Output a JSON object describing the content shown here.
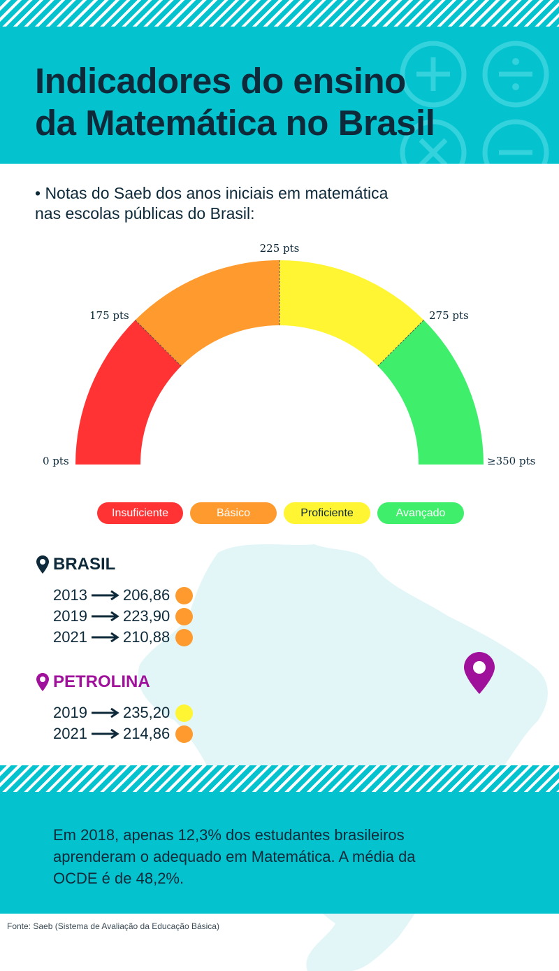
{
  "header": {
    "title_line1": "Indicadores do ensino",
    "title_line2": "da Matemática no Brasil"
  },
  "subtitle": {
    "line1": "• Notas do Saeb dos anos iniciais em matemática",
    "line2": "nas escolas públicas do Brasil:"
  },
  "chart_data": {
    "type": "gauge",
    "min": 0,
    "max": 350,
    "tick_labels": [
      "0 pts",
      "175 pts",
      "225 pts",
      "275 pts",
      "≥350 pts"
    ],
    "bands": [
      {
        "name": "Insuficiente",
        "from": 0,
        "to": 175,
        "color": "#ff3333"
      },
      {
        "name": "Básico",
        "from": 175,
        "to": 225,
        "color": "#ff9a2e"
      },
      {
        "name": "Proficiente",
        "from": 225,
        "to": 275,
        "color": "#fff533"
      },
      {
        "name": "Avançado",
        "from": 275,
        "to": 350,
        "color": "#3fef6c"
      }
    ]
  },
  "legend": [
    {
      "label": "Insuficiente",
      "color": "#ff3333",
      "text_color": "#ffffff"
    },
    {
      "label": "Básico",
      "color": "#ff9a2e",
      "text_color": "#ffffff"
    },
    {
      "label": "Proficiente",
      "color": "#fff533",
      "text_color": "#0e2a3a"
    },
    {
      "label": "Avançado",
      "color": "#3fef6c",
      "text_color": "#ffffff"
    }
  ],
  "brasil": {
    "name": "BRASIL",
    "color": "#0e2a3a",
    "rows": [
      {
        "year": "2013",
        "score": "206,86",
        "level_color": "#ff9a2e"
      },
      {
        "year": "2019",
        "score": "223,90",
        "level_color": "#ff9a2e"
      },
      {
        "year": "2021",
        "score": "210,88",
        "level_color": "#ff9a2e"
      }
    ]
  },
  "petrolina": {
    "name": "PETROLINA",
    "color": "#a0119b",
    "rows": [
      {
        "year": "2019",
        "score": "235,20",
        "level_color": "#fff533"
      },
      {
        "year": "2021",
        "score": "214,86",
        "level_color": "#ff9a2e"
      }
    ]
  },
  "fact": "Em 2018, apenas 12,3% dos estudantes brasileiros aprenderam o adequado em Matemática. A média da OCDE é de 48,2%.",
  "source": "Fonte: Saeb (Sistema de Avaliação da Educação Básica)",
  "colors": {
    "accent": "#04c3cf",
    "text": "#0e2a3a",
    "map": "#e2f6f8"
  },
  "icons": [
    "map-pin-icon",
    "arrow-right-icon",
    "plus-icon",
    "divide-icon",
    "times-icon",
    "minus-icon"
  ]
}
